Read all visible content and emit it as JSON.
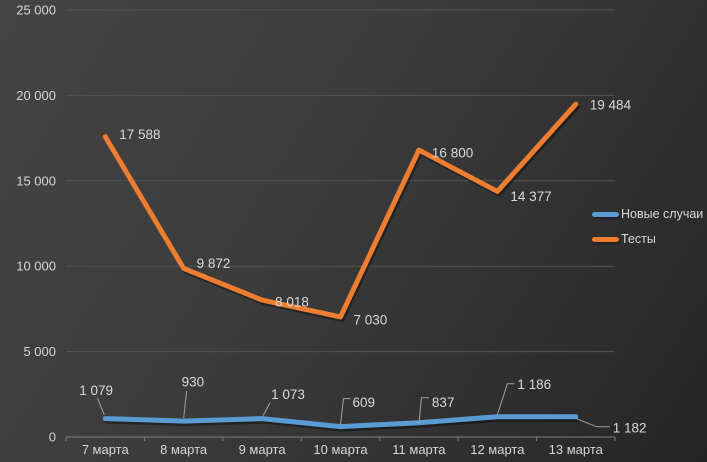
{
  "chart_data": {
    "type": "line",
    "categories": [
      "7 марта",
      "8 марта",
      "9 марта",
      "10 марта",
      "11 марта",
      "12 марта",
      "13 марта"
    ],
    "series": [
      {
        "name": "Новые случаи",
        "color": "#5B9BD5",
        "values": [
          1079,
          930,
          1073,
          609,
          837,
          1186,
          1182
        ],
        "labels": [
          "1 079",
          "930",
          "1 073",
          "609",
          "837",
          "1 186",
          "1 182"
        ]
      },
      {
        "name": "Тесты",
        "color": "#ED7D31",
        "values": [
          17588,
          9872,
          8018,
          7030,
          16800,
          14377,
          19484
        ],
        "labels": [
          "17 588",
          "9 872",
          "8 018",
          "7 030",
          "16 800",
          "14 377",
          "19 484"
        ]
      }
    ],
    "title": "",
    "xlabel": "",
    "ylabel": "",
    "ylim": [
      0,
      25000
    ],
    "ytick_step": 5000,
    "ytick_labels": [
      "0",
      "5 000",
      "10 000",
      "15 000",
      "20 000",
      "25 000"
    ],
    "grid": true,
    "data_labels": true,
    "legend_position": "right"
  },
  "legend": {
    "items": [
      {
        "label": "Новые случаи",
        "color": "#5B9BD5"
      },
      {
        "label": "Тесты",
        "color": "#ED7D31"
      }
    ]
  },
  "colors": {
    "background_start": "#444444",
    "background_end": "#242424",
    "gridline": "#555555",
    "axis_line": "#7f7f7f",
    "axis_label": "#d6d6d6",
    "data_label": "#d9d9d9",
    "leader_line": "#a3a3a3",
    "series_blue": "#5B9BD5",
    "series_orange": "#ED7D31"
  }
}
